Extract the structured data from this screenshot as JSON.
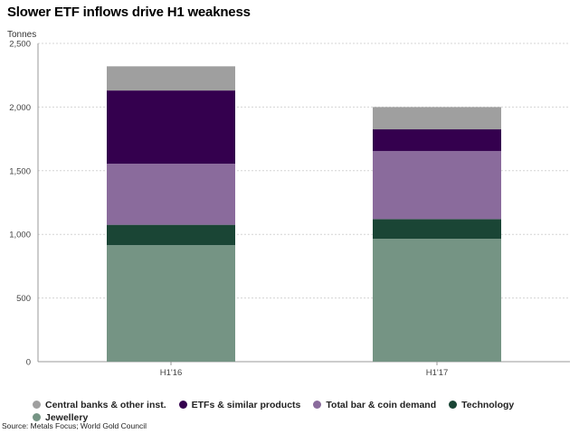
{
  "title": "Slower ETF inflows drive H1 weakness",
  "unit_label": "Tonnes",
  "source": "Source: Metals Focus; World Gold Council",
  "colors": {
    "gridline": "#d4d4d4",
    "axis": "#999999",
    "tick_text": "#444444"
  },
  "chart_data": {
    "type": "bar",
    "stacked": true,
    "categories": [
      "H1'16",
      "H1'17"
    ],
    "ylim": [
      0,
      2500
    ],
    "yticks": [
      0,
      500,
      1000,
      1500,
      2000,
      2500
    ],
    "ytick_labels": [
      "0",
      "500",
      "1,000",
      "1,500",
      "2,000",
      "2,500"
    ],
    "grid": true,
    "legend_position": "bottom",
    "series": [
      {
        "name": "Jewellery",
        "color": "#759484",
        "values": [
          915,
          965
        ]
      },
      {
        "name": "Technology",
        "color": "#1a4535",
        "values": [
          160,
          155
        ]
      },
      {
        "name": "Total bar & coin demand",
        "color": "#8a6b9c",
        "values": [
          480,
          535
        ]
      },
      {
        "name": "ETFs & similar products",
        "color": "#34004e",
        "values": [
          575,
          170
        ]
      },
      {
        "name": "Central banks & other inst.",
        "color": "#9f9f9f",
        "values": [
          190,
          175
        ]
      }
    ]
  },
  "legend": {
    "rows": [
      [
        {
          "label": "Central banks & other inst.",
          "color": "#9f9f9f"
        },
        {
          "label": "ETFs & similar products",
          "color": "#34004e"
        },
        {
          "label": "Total bar & coin demand",
          "color": "#8a6b9c"
        },
        {
          "label": "Technology",
          "color": "#1a4535"
        }
      ],
      [
        {
          "label": "Jewellery",
          "color": "#759484"
        }
      ]
    ]
  }
}
